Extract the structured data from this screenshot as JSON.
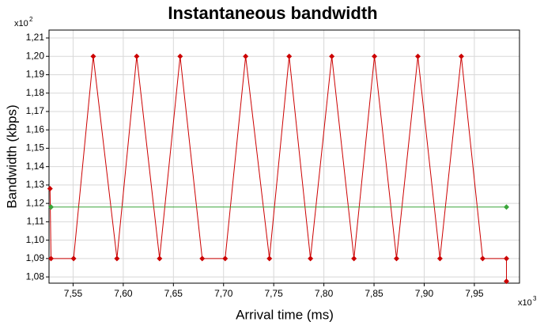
{
  "chart_data": {
    "type": "line",
    "title": "Instantaneous bandwidth",
    "x_label": "Arrival time (ms)",
    "y_label": "Bandwidth (kbps)",
    "x_multiplier": "x10",
    "x_multiplier_exp": "3",
    "y_multiplier": "x10",
    "y_multiplier_exp": "2",
    "xlim": [
      7.526,
      7.995
    ],
    "ylim": [
      1.0766,
      1.2143
    ],
    "xticks": [
      {
        "value": 7.55,
        "label": "7,55"
      },
      {
        "value": 7.6,
        "label": "7,60"
      },
      {
        "value": 7.65,
        "label": "7,65"
      },
      {
        "value": 7.7,
        "label": "7,70"
      },
      {
        "value": 7.75,
        "label": "7,75"
      },
      {
        "value": 7.8,
        "label": "7,80"
      },
      {
        "value": 7.85,
        "label": "7,85"
      },
      {
        "value": 7.9,
        "label": "7,90"
      },
      {
        "value": 7.95,
        "label": "7,95"
      }
    ],
    "yticks": [
      {
        "value": 1.08,
        "label": "1,08"
      },
      {
        "value": 1.09,
        "label": "1,09"
      },
      {
        "value": 1.1,
        "label": "1,10"
      },
      {
        "value": 1.11,
        "label": "1,11"
      },
      {
        "value": 1.12,
        "label": "1,12"
      },
      {
        "value": 1.13,
        "label": "1,13"
      },
      {
        "value": 1.14,
        "label": "1,14"
      },
      {
        "value": 1.15,
        "label": "1,15"
      },
      {
        "value": 1.16,
        "label": "1,16"
      },
      {
        "value": 1.17,
        "label": "1,17"
      },
      {
        "value": 1.18,
        "label": "1,18"
      },
      {
        "value": 1.19,
        "label": "1,19"
      },
      {
        "value": 1.2,
        "label": "1,20"
      },
      {
        "value": 1.21,
        "label": "1,21"
      }
    ],
    "grid": true,
    "series": [
      {
        "color": "#cc0000",
        "x": [
          7.527,
          7.528,
          7.5505,
          7.5701,
          7.5937,
          7.6134,
          7.6362,
          7.6567,
          7.6787,
          7.7016,
          7.722,
          7.7457,
          7.7654,
          7.7866,
          7.8079,
          7.83,
          7.8504,
          7.8724,
          7.8937,
          7.9157,
          7.937,
          7.9583,
          7.982,
          7.982
        ],
        "values": [
          1.128,
          1.09,
          1.09,
          1.2,
          1.09,
          1.2,
          1.09,
          1.2,
          1.09,
          1.09,
          1.2,
          1.09,
          1.2,
          1.09,
          1.2,
          1.09,
          1.2,
          1.09,
          1.2,
          1.09,
          1.2,
          1.09,
          1.09,
          1.0776
        ]
      },
      {
        "color": "#3aa63a",
        "x": [
          7.528,
          7.982
        ],
        "values": [
          1.118,
          1.118
        ]
      }
    ]
  }
}
